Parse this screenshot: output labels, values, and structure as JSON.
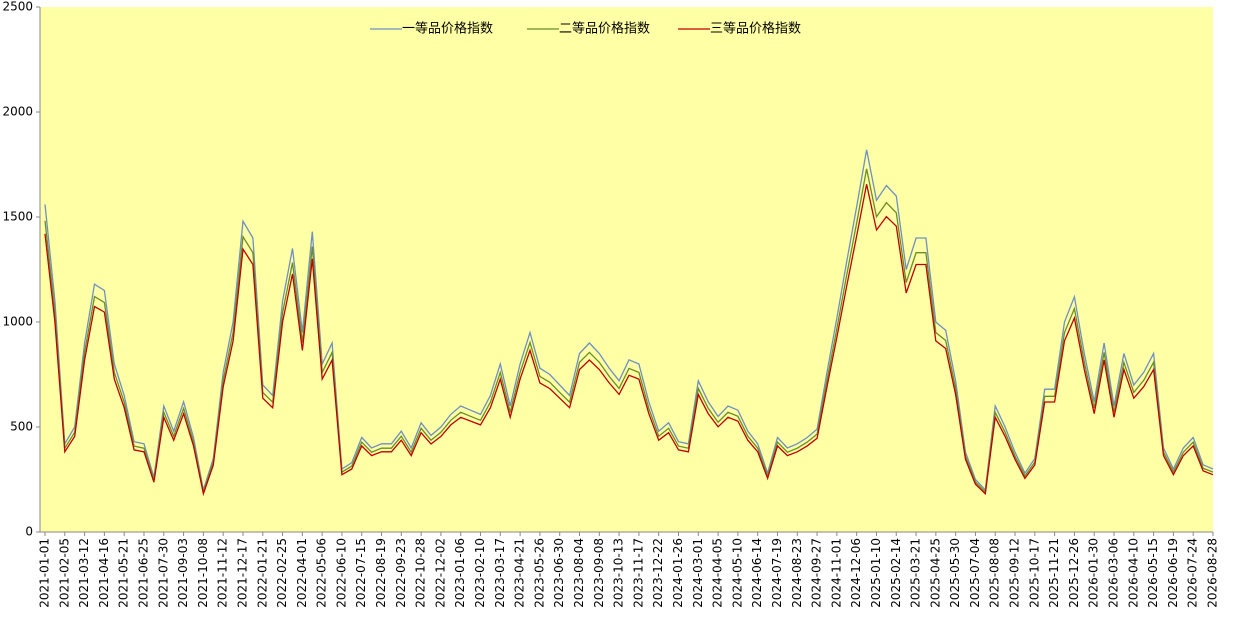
{
  "chart_data": {
    "type": "line",
    "categories": [
      "2021-01-01",
      null,
      "2021-02-05",
      null,
      "2021-03-12",
      null,
      "2021-04-16",
      null,
      "2021-05-21",
      null,
      "2021-06-25",
      null,
      "2021-07-30",
      null,
      "2021-09-03",
      null,
      "2021-10-08",
      null,
      "2021-11-12",
      null,
      "2021-12-17",
      null,
      "2022-01-21",
      null,
      "2022-02-25",
      null,
      "2022-04-01",
      null,
      "2022-05-06",
      null,
      "2022-06-10",
      null,
      "2022-07-15",
      null,
      "2022-08-19",
      null,
      "2022-09-23",
      null,
      "2022-10-28",
      null,
      "2022-12-02",
      null,
      "2023-01-06",
      null,
      "2023-02-10",
      null,
      "2023-03-17",
      null,
      "2023-04-21",
      null,
      "2023-05-26",
      null,
      "2023-06-30",
      null,
      "2023-08-04",
      null,
      "2023-09-08",
      null,
      "2023-10-13",
      null,
      "2023-11-17",
      null,
      "2023-12-22",
      null,
      "2024-01-26",
      null,
      "2024-03-01",
      null,
      "2024-04-05",
      null,
      "2024-05-10",
      null,
      "2024-06-14",
      null,
      "2024-07-19",
      null,
      "2024-08-23",
      null,
      "2024-09-27",
      null,
      "2024-11-01",
      null,
      "2024-12-06",
      null,
      "2025-01-10",
      null,
      "2025-02-14",
      null,
      "2025-03-21",
      null,
      "2025-04-25",
      null,
      "2025-05-30",
      null,
      "2025-07-04",
      null,
      "2025-08-08",
      null,
      "2025-09-12",
      null,
      "2025-10-17",
      null,
      "2025-11-21",
      null,
      "2025-12-26",
      null,
      "2026-01-30",
      null,
      "2026-03-06",
      null,
      "2026-04-10",
      null,
      "2026-05-15",
      null,
      "2026-06-19",
      null,
      "2026-07-24",
      null,
      "2026-08-28"
    ],
    "series": [
      {
        "name": "一等品价格指数",
        "color": "#6f8fc0",
        "values": [
          1560,
          1100,
          420,
          500,
          900,
          1180,
          1150,
          800,
          650,
          430,
          420,
          260,
          600,
          480,
          620,
          450,
          200,
          350,
          760,
          1000,
          1480,
          1400,
          700,
          650,
          1100,
          1350,
          950,
          1430,
          800,
          900,
          300,
          330,
          450,
          400,
          420,
          420,
          480,
          400,
          520,
          460,
          500,
          560,
          600,
          580,
          560,
          650,
          800,
          600,
          800,
          950,
          780,
          750,
          700,
          650,
          850,
          900,
          850,
          780,
          720,
          820,
          800,
          620,
          480,
          520,
          430,
          420,
          720,
          620,
          550,
          600,
          580,
          480,
          420,
          280,
          450,
          400,
          420,
          450,
          490,
          760,
          1020,
          1290,
          1550,
          1820,
          1580,
          1650,
          1600,
          1250,
          1400,
          1400,
          1000,
          960,
          720,
          380,
          250,
          200,
          600,
          500,
          380,
          280,
          350,
          680,
          680,
          1000,
          1120,
          850,
          620,
          900,
          600,
          850,
          700,
          760,
          850,
          400,
          300,
          400,
          450,
          320,
          300
        ]
      },
      {
        "name": "二等品价格指数",
        "color": "#6b8e23",
        "values": [
          1482,
          1045,
          399,
          475,
          855,
          1121,
          1093,
          760,
          618,
          409,
          399,
          247,
          570,
          456,
          589,
          428,
          190,
          333,
          722,
          950,
          1406,
          1330,
          665,
          618,
          1045,
          1283,
          903,
          1359,
          760,
          855,
          285,
          314,
          428,
          380,
          399,
          399,
          456,
          380,
          494,
          437,
          475,
          532,
          570,
          551,
          532,
          618,
          760,
          570,
          760,
          903,
          741,
          713,
          665,
          618,
          808,
          855,
          808,
          741,
          684,
          779,
          760,
          589,
          456,
          494,
          409,
          399,
          684,
          589,
          523,
          570,
          551,
          456,
          399,
          266,
          428,
          380,
          399,
          428,
          466,
          722,
          969,
          1226,
          1473,
          1729,
          1501,
          1568,
          1520,
          1188,
          1330,
          1330,
          950,
          912,
          684,
          361,
          238,
          190,
          570,
          475,
          361,
          266,
          333,
          646,
          646,
          950,
          1064,
          808,
          589,
          855,
          570,
          808,
          665,
          722,
          808,
          380,
          285,
          380,
          428,
          304,
          285
        ]
      },
      {
        "name": "三等品价格指数",
        "color": "#c00000",
        "values": [
          1420,
          1001,
          382,
          455,
          819,
          1074,
          1047,
          728,
          592,
          391,
          382,
          237,
          546,
          437,
          564,
          410,
          182,
          319,
          692,
          910,
          1347,
          1274,
          637,
          592,
          1001,
          1229,
          865,
          1301,
          728,
          819,
          273,
          300,
          410,
          364,
          382,
          382,
          437,
          364,
          473,
          419,
          455,
          510,
          546,
          528,
          510,
          592,
          728,
          546,
          728,
          865,
          710,
          683,
          637,
          592,
          774,
          819,
          774,
          710,
          655,
          746,
          728,
          564,
          437,
          473,
          391,
          382,
          655,
          564,
          501,
          546,
          528,
          437,
          382,
          255,
          410,
          364,
          382,
          410,
          446,
          692,
          928,
          1174,
          1411,
          1656,
          1438,
          1502,
          1456,
          1138,
          1274,
          1274,
          910,
          874,
          655,
          346,
          228,
          182,
          546,
          455,
          346,
          255,
          319,
          619,
          619,
          910,
          1019,
          774,
          564,
          819,
          546,
          774,
          637,
          692,
          774,
          364,
          273,
          364,
          410,
          291,
          273
        ]
      }
    ],
    "ylim": [
      0,
      2500
    ],
    "yticks": [
      0,
      500,
      1000,
      1500,
      2000,
      2500
    ],
    "background": "#ffffa6",
    "legend": "top"
  }
}
